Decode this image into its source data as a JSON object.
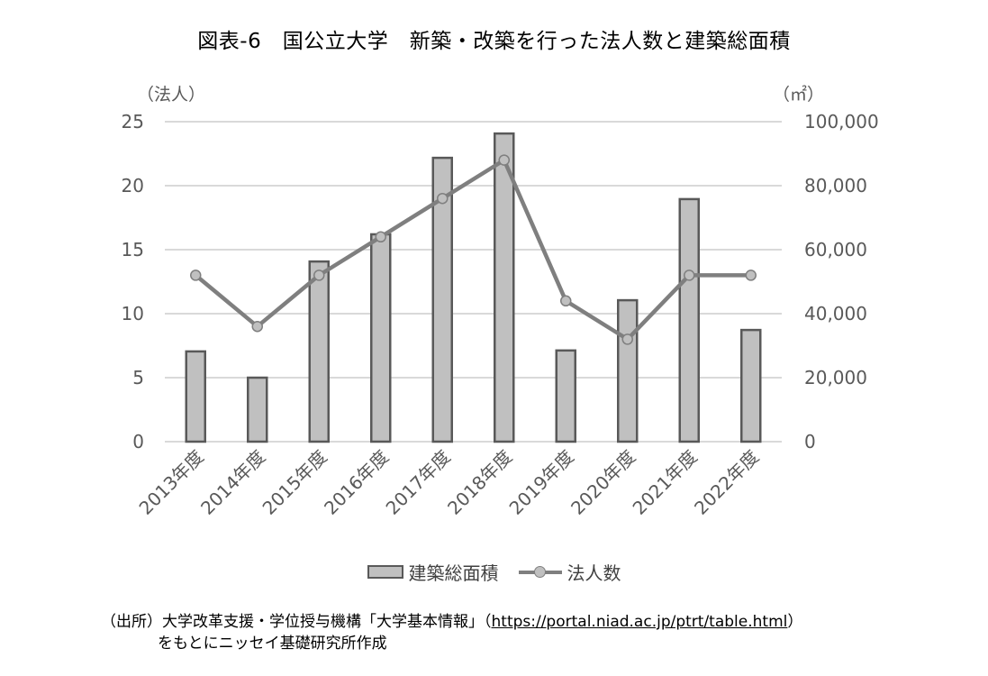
{
  "title": "図表-6　国公立大学　新築・改築を行った法人数と建築総面積",
  "left_axis_unit": "（法人）",
  "right_axis_unit": "（㎡）",
  "legend": {
    "bar_label": "建築総面積",
    "line_label": "法人数"
  },
  "source": {
    "prefix": "（出所）大学改革支援・学位授与機構「大学基本情報」（",
    "link": "https://portal.niad.ac.jp/ptrt/table.html",
    "suffix": "）",
    "line2": "をもとにニッセイ基礎研究所作成"
  },
  "colors": {
    "bar_fill": "#c0c0c0",
    "bar_stroke": "#595959",
    "line": "#7f7f7f",
    "marker_fill": "#c0c0c0",
    "grid": "#d9d9d9",
    "tick_text": "#595959"
  },
  "chart_data": {
    "type": "bar+line",
    "title": "国公立大学　新築・改築を行った法人数と建築総面積",
    "categories": [
      "2013年度",
      "2014年度",
      "2015年度",
      "2016年度",
      "2017年度",
      "2018年度",
      "2019年度",
      "2020年度",
      "2021年度",
      "2022年度"
    ],
    "series": [
      {
        "name": "建築総面積",
        "type": "bar",
        "axis": "right",
        "unit": "㎡",
        "values": [
          28200,
          20000,
          56300,
          64800,
          88700,
          96300,
          28500,
          44200,
          75800,
          34900
        ]
      },
      {
        "name": "法人数",
        "type": "line",
        "axis": "left",
        "unit": "法人",
        "values": [
          13,
          9,
          13,
          16,
          19,
          22,
          11,
          8,
          13,
          13
        ]
      }
    ],
    "left_axis": {
      "label": "（法人）",
      "ylim": [
        0,
        25
      ],
      "ticks": [
        "0",
        "5",
        "10",
        "15",
        "20",
        "25"
      ]
    },
    "right_axis": {
      "label": "（㎡）",
      "ylim": [
        0,
        100000
      ],
      "ticks": [
        "0",
        "20,000",
        "40,000",
        "60,000",
        "80,000",
        "100,000"
      ]
    },
    "grid": true,
    "legend_position": "bottom"
  }
}
